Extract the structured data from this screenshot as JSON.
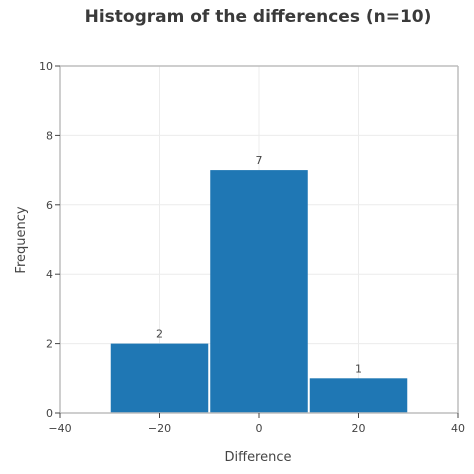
{
  "chart_data": {
    "type": "bar",
    "title": "Histogram of the differences (n=10)",
    "xlabel": "Difference",
    "ylabel": "Frequency",
    "bins": [
      {
        "x0": -30,
        "x1": -10,
        "value": 2,
        "label": "2"
      },
      {
        "x0": -10,
        "x1": 10,
        "value": 7,
        "label": "7"
      },
      {
        "x0": 10,
        "x1": 30,
        "value": 1,
        "label": "1"
      }
    ],
    "xlim": [
      -40,
      40
    ],
    "ylim": [
      0,
      10
    ],
    "x_ticks": [
      -40,
      -20,
      0,
      20,
      40
    ],
    "x_tick_labels": [
      "−40",
      "−20",
      "0",
      "20",
      "40"
    ],
    "y_ticks": [
      0,
      2,
      4,
      6,
      8,
      10
    ],
    "y_tick_labels": [
      "0",
      "2",
      "4",
      "6",
      "8",
      "10"
    ],
    "grid": true,
    "bar_color": "#1f77b4"
  }
}
